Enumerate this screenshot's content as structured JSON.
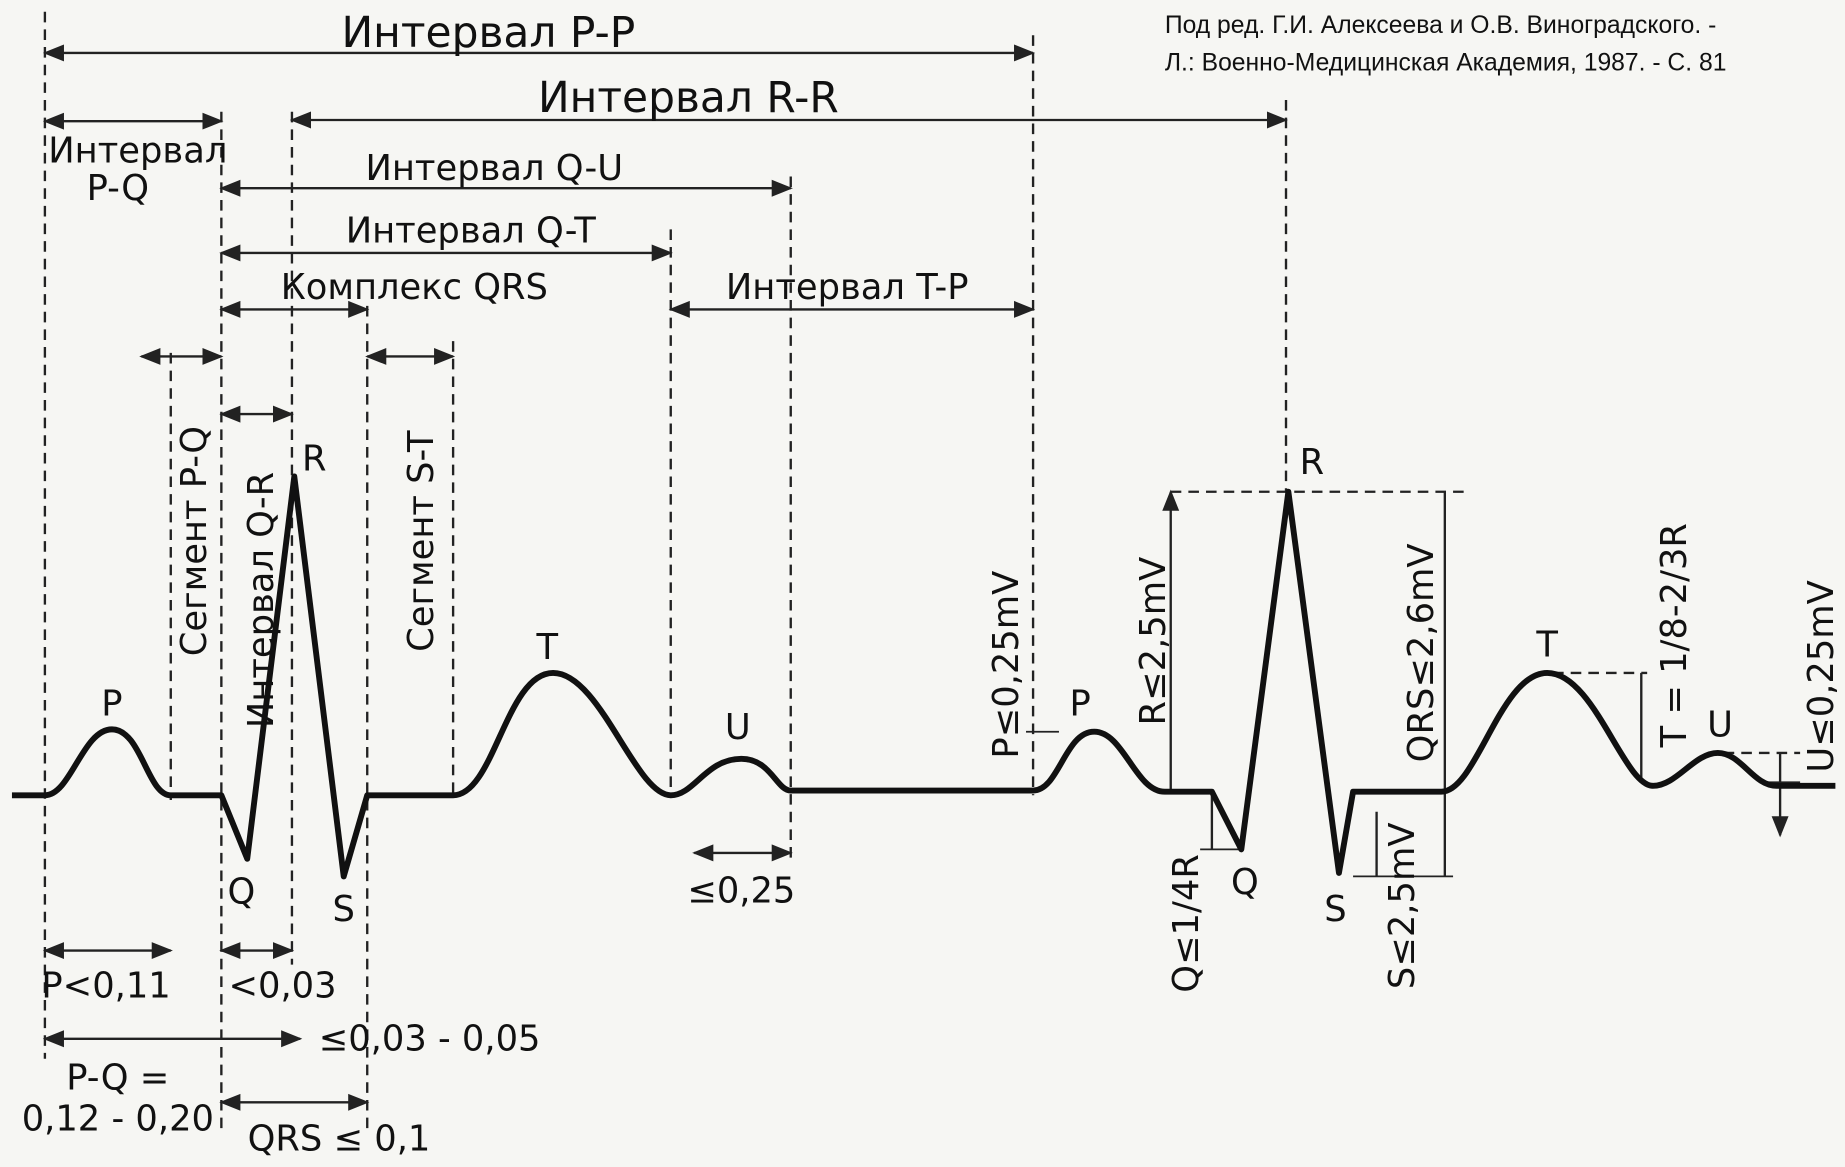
{
  "citation": [
    "Под ред. Г.И. Алексеева и О.В. Виноградского. -",
    "Л.: Военно-Медицинская Академия, 1987. - С. 81"
  ],
  "intervals": [
    "Интервал P-P",
    "Интервал R-R",
    "Интервал",
    "P-Q",
    "Интервал Q-U",
    "Интервал Q-T",
    "Комплекс QRS",
    "Интервал T-P"
  ],
  "vertical_labels": [
    "Сегмент P-Q",
    "Интервал Q-R",
    "Сегмент S-T",
    "P≤0,25mV",
    "R≤2,5mV",
    "QRS≤2,6mV",
    "T = 1/8-2/3R",
    "U≤0,25mV",
    "Q≤1/4R",
    "S≤2,5mV"
  ],
  "waves": [
    "P",
    "Q",
    "R",
    "S",
    "T",
    "U",
    "P",
    "Q",
    "R",
    "S",
    "T",
    "U"
  ],
  "durations": [
    "≤0,25",
    "P<0,11",
    "<0,03",
    "≤0,03 - 0,05",
    "P-Q =",
    "0,12 - 0,20",
    "QRS ≤ 0,1"
  ]
}
